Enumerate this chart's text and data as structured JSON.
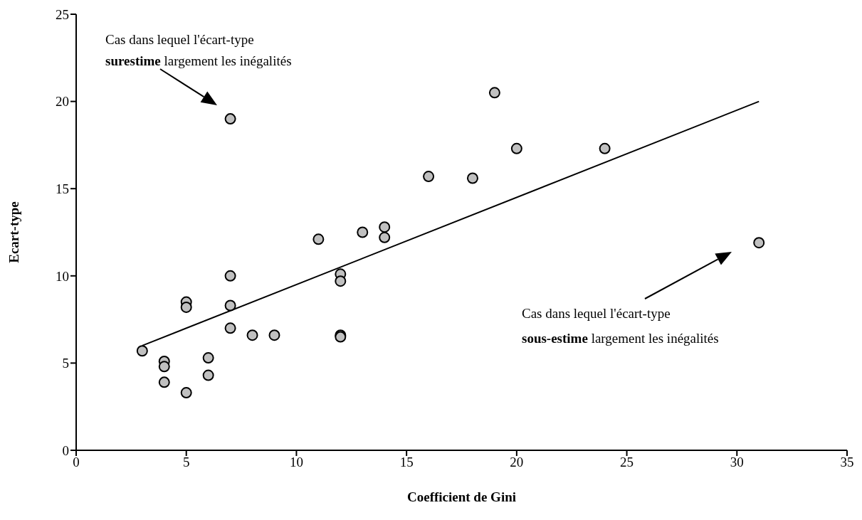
{
  "chart_data": {
    "type": "scatter",
    "xlabel": "Coefficient de Gini",
    "ylabel": "Ecart-type",
    "xlim": [
      0,
      35
    ],
    "xticks": [
      0,
      5,
      10,
      15,
      20,
      25,
      30,
      35
    ],
    "ylim": [
      0,
      25
    ],
    "yticks": [
      0,
      5,
      10,
      15,
      20,
      25
    ],
    "grid": false,
    "series": [
      {
        "marker": "circle",
        "color": "#c0c0c0",
        "x": [
          3,
          4,
          4,
          4,
          5,
          5,
          5,
          6,
          6,
          7,
          7,
          7,
          7,
          8,
          9,
          11,
          12,
          12,
          12,
          12,
          13,
          14,
          14,
          16,
          18,
          19,
          20,
          24,
          31
        ],
        "values": [
          5.7,
          5.1,
          4.8,
          3.9,
          8.5,
          8.2,
          3.3,
          5.3,
          4.3,
          10.0,
          8.3,
          7.0,
          19.0,
          6.6,
          6.6,
          12.1,
          10.1,
          9.7,
          6.6,
          6.5,
          12.5,
          12.8,
          12.2,
          15.7,
          15.6,
          20.5,
          17.3,
          17.3,
          11.9
        ]
      },
      {
        "type": "line",
        "color": "#000000",
        "x": [
          3,
          31
        ],
        "values": [
          6,
          20
        ]
      }
    ],
    "annotations": [
      "Cas dans lequel l'écart-type surestime largement les inégalités",
      "Cas dans lequel l'écart-type sous-estime largement les inégalités"
    ]
  }
}
